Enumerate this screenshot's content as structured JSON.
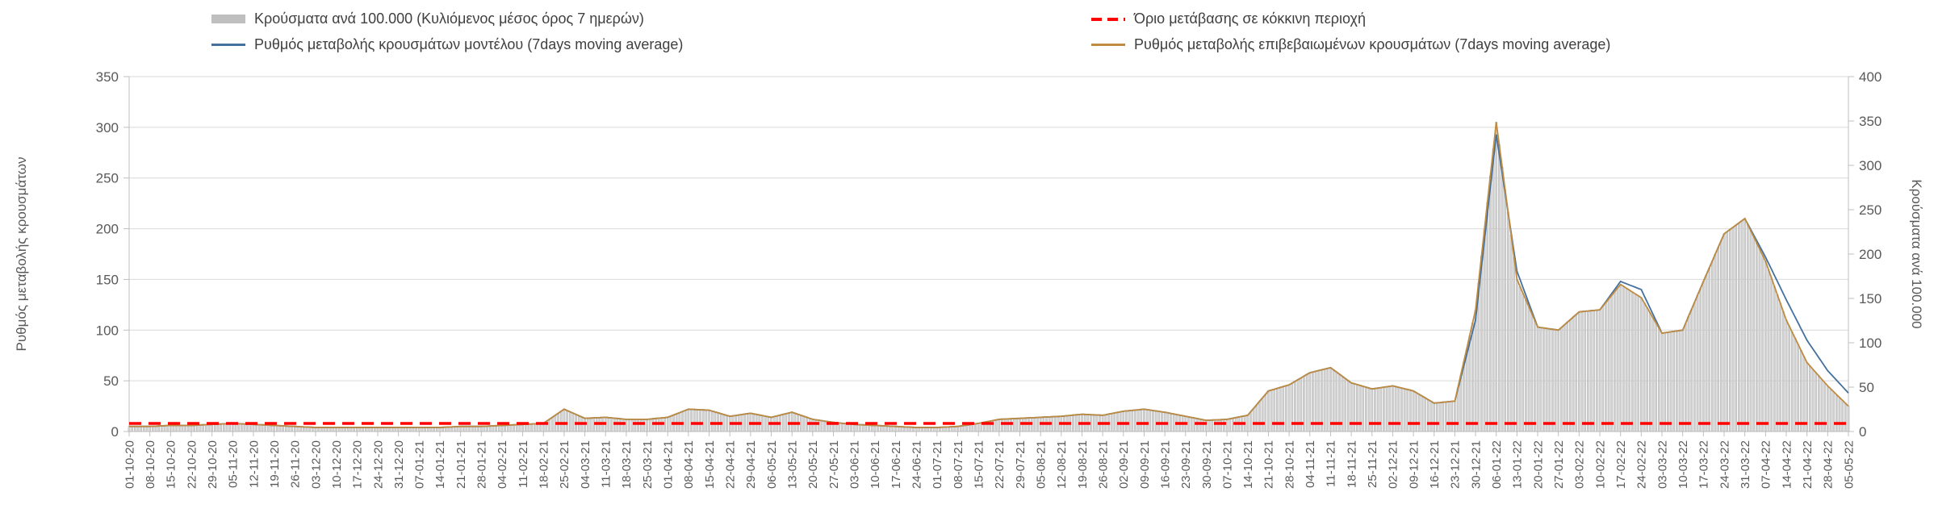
{
  "colors": {
    "grid": "#d9d9d9",
    "axis": "#bfbfbf",
    "tick_text": "#595959",
    "legend_text": "#404040",
    "background": "#ffffff"
  },
  "chart_data": {
    "type": "combo",
    "legend_position": "top",
    "grid": true,
    "axes": {
      "left": {
        "title": "Ρυθμός μεταβολής κρουσμάτων",
        "min": 0,
        "max": 350,
        "step": 50
      },
      "right": {
        "title": "Κρούσματα ανά 100.000",
        "min": 0,
        "max": 400,
        "step": 50
      }
    },
    "categories": [
      "01-10-20",
      "08-10-20",
      "15-10-20",
      "22-10-20",
      "29-10-20",
      "05-11-20",
      "12-11-20",
      "19-11-20",
      "26-11-20",
      "03-12-20",
      "10-12-20",
      "17-12-20",
      "24-12-20",
      "31-12-20",
      "07-01-21",
      "14-01-21",
      "21-01-21",
      "28-01-21",
      "04-02-21",
      "11-02-21",
      "18-02-21",
      "25-02-21",
      "04-03-21",
      "11-03-21",
      "18-03-21",
      "25-03-21",
      "01-04-21",
      "08-04-21",
      "15-04-21",
      "22-04-21",
      "29-04-21",
      "06-05-21",
      "13-05-21",
      "20-05-21",
      "27-05-21",
      "03-06-21",
      "10-06-21",
      "17-06-21",
      "24-06-21",
      "01-07-21",
      "08-07-21",
      "15-07-21",
      "22-07-21",
      "29-07-21",
      "05-08-21",
      "12-08-21",
      "19-08-21",
      "26-08-21",
      "02-09-21",
      "09-09-21",
      "16-09-21",
      "23-09-21",
      "30-09-21",
      "07-10-21",
      "14-10-21",
      "21-10-21",
      "28-10-21",
      "04-11-21",
      "11-11-21",
      "18-11-21",
      "25-11-21",
      "02-12-21",
      "09-12-21",
      "16-12-21",
      "23-12-21",
      "30-12-21",
      "06-01-22",
      "13-01-22",
      "20-01-22",
      "27-01-22",
      "03-02-22",
      "10-02-22",
      "17-02-22",
      "24-02-22",
      "03-03-22",
      "10-03-22",
      "17-03-22",
      "24-03-22",
      "31-03-22",
      "07-04-22",
      "14-04-22",
      "21-04-22",
      "28-04-22",
      "05-05-22"
    ],
    "series": [
      {
        "name": "Κρούσματα ανά 100.000 (Κυλιόμενος μέσος όρος 7 ημερών)",
        "type": "bar",
        "axis": "right",
        "color": "#d3d3d3",
        "stroke": "#a6a6a6",
        "legend_color": "#bfbfbf",
        "values": [
          6,
          6,
          7,
          7,
          8,
          9,
          8,
          7,
          6,
          5,
          5,
          5,
          5,
          5,
          5,
          5,
          6,
          6,
          7,
          8,
          9,
          25,
          15,
          16,
          14,
          14,
          16,
          25,
          24,
          17,
          21,
          16,
          22,
          14,
          10,
          8,
          7,
          6,
          5,
          5,
          6,
          9,
          14,
          15,
          16,
          17,
          19,
          18,
          23,
          25,
          22,
          17,
          13,
          14,
          18,
          46,
          53,
          66,
          72,
          55,
          48,
          51,
          46,
          32,
          34,
          137,
          349,
          171,
          118,
          114,
          135,
          137,
          166,
          151,
          111,
          114,
          169,
          223,
          240,
          192,
          126,
          78,
          51,
          29
        ]
      },
      {
        "name": "Όριο μετάβασης σε κόκκινη περιοχή",
        "type": "threshold",
        "axis": "left",
        "color": "#ff0000",
        "value": 8
      },
      {
        "name": "Ρυθμός μεταβολής κρουσμάτων μοντέλου (7days moving average)",
        "type": "line",
        "axis": "left",
        "color": "#44709d",
        "values": [
          5,
          5,
          6,
          6,
          7,
          8,
          7,
          6,
          5,
          4,
          4,
          4,
          4,
          4,
          4,
          4,
          5,
          5,
          6,
          7,
          8,
          22,
          13,
          14,
          12,
          12,
          14,
          22,
          21,
          15,
          18,
          14,
          19,
          12,
          9,
          7,
          6,
          5,
          4,
          4,
          5,
          8,
          12,
          13,
          14,
          15,
          17,
          16,
          20,
          22,
          19,
          15,
          11,
          12,
          16,
          40,
          46,
          58,
          63,
          48,
          42,
          45,
          40,
          28,
          30,
          110,
          293,
          158,
          103,
          100,
          118,
          120,
          148,
          140,
          97,
          100,
          148,
          195,
          210,
          172,
          130,
          90,
          60,
          38
        ]
      },
      {
        "name": "Ρυθμός μεταβολής επιβεβαιωμένων κρουσμάτων (7days moving average)",
        "type": "line",
        "axis": "left",
        "color": "#bf8b40",
        "values": [
          5,
          5,
          6,
          6,
          7,
          8,
          7,
          6,
          5,
          4,
          4,
          4,
          4,
          4,
          4,
          4,
          5,
          5,
          6,
          7,
          8,
          22,
          13,
          14,
          12,
          12,
          14,
          22,
          21,
          15,
          18,
          14,
          19,
          12,
          9,
          7,
          6,
          5,
          4,
          4,
          5,
          8,
          12,
          13,
          14,
          15,
          17,
          16,
          20,
          22,
          19,
          15,
          11,
          12,
          16,
          40,
          46,
          58,
          63,
          48,
          42,
          45,
          40,
          28,
          30,
          120,
          305,
          150,
          103,
          100,
          118,
          120,
          145,
          132,
          97,
          100,
          148,
          195,
          210,
          168,
          110,
          68,
          45,
          25
        ]
      }
    ]
  }
}
